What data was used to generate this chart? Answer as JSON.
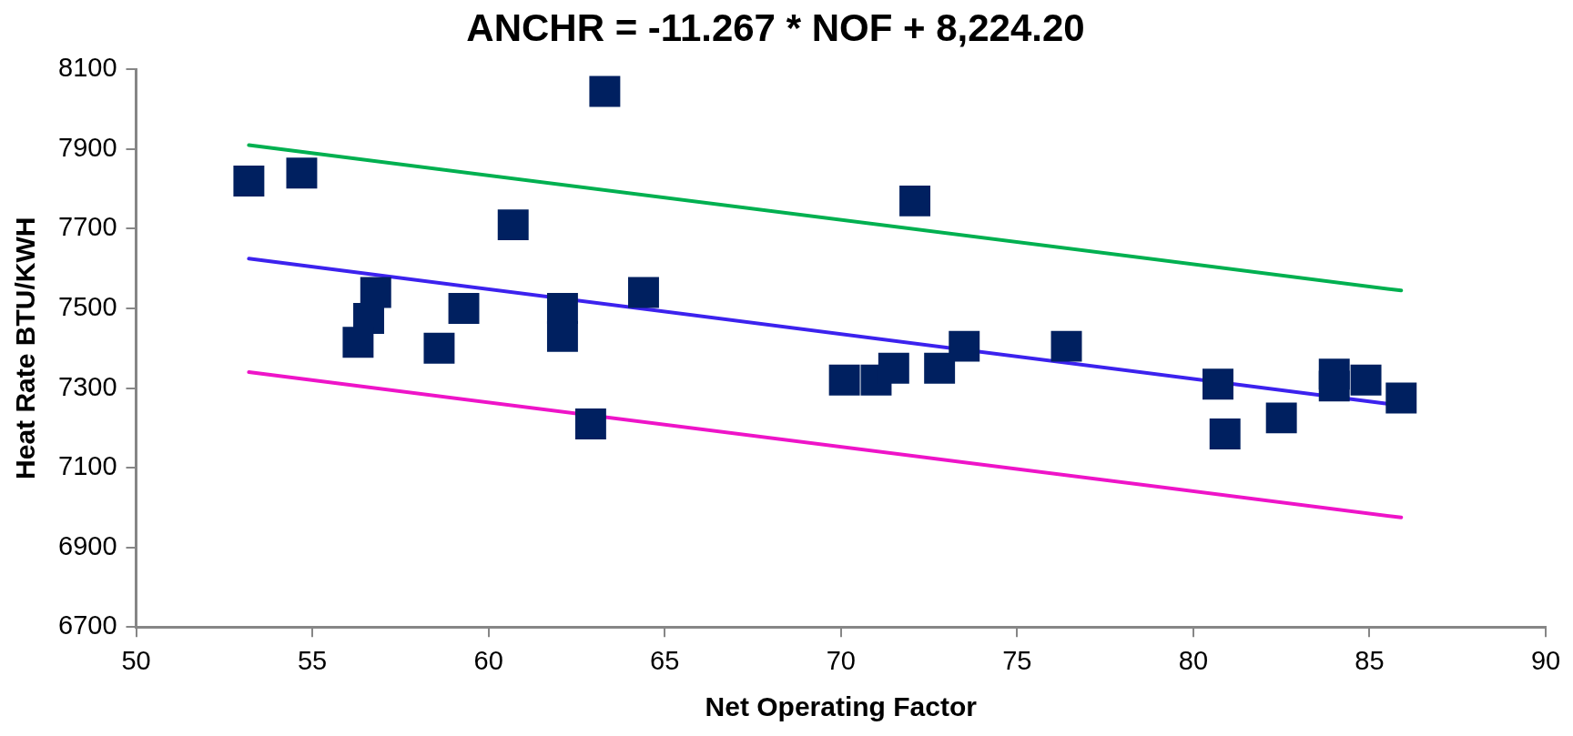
{
  "chart_data": {
    "type": "scatter",
    "title": "ANCHR = -11.267 * NOF + 8,224.20",
    "xlabel": "Net Operating Factor",
    "ylabel": "Heat Rate BTU/KWH",
    "xlim": [
      50,
      90
    ],
    "xticks": [
      50,
      55,
      60,
      65,
      70,
      75,
      80,
      85,
      90
    ],
    "ylim": [
      6700,
      8100
    ],
    "yticks": [
      6700,
      6900,
      7100,
      7300,
      7500,
      7700,
      7900,
      8100
    ],
    "grid": false,
    "marker": "square",
    "series": [
      {
        "color": "#002060",
        "x": [
          53.2,
          54.7,
          63.3,
          60.7,
          56.8,
          56.6,
          56.3,
          58.6,
          59.3,
          62.1,
          62.1,
          62.9,
          64.4,
          72.1,
          70.1,
          71.0,
          71.5,
          72.8,
          73.5,
          76.4,
          80.7,
          80.9,
          82.5,
          84.0,
          84.0,
          84.9,
          85.9
        ],
        "values": [
          7820,
          7840,
          8045,
          7710,
          7540,
          7475,
          7415,
          7400,
          7500,
          7500,
          7430,
          7210,
          7540,
          7770,
          7320,
          7320,
          7350,
          7350,
          7405,
          7405,
          7310,
          7185,
          7225,
          7335,
          7305,
          7320,
          7275
        ]
      },
      {
        "type": "line",
        "color": "#00b050",
        "marker": "none",
        "x": [
          53.2,
          85.9
        ],
        "values": [
          7910,
          7545
        ]
      },
      {
        "type": "line",
        "color": "#3c22ee",
        "marker": "none",
        "x": [
          53.2,
          85.5
        ],
        "values": [
          7625,
          7261
        ]
      },
      {
        "type": "line",
        "color": "#ee14c8",
        "marker": "none",
        "x": [
          53.2,
          85.9
        ],
        "values": [
          7340,
          6975
        ]
      }
    ]
  }
}
